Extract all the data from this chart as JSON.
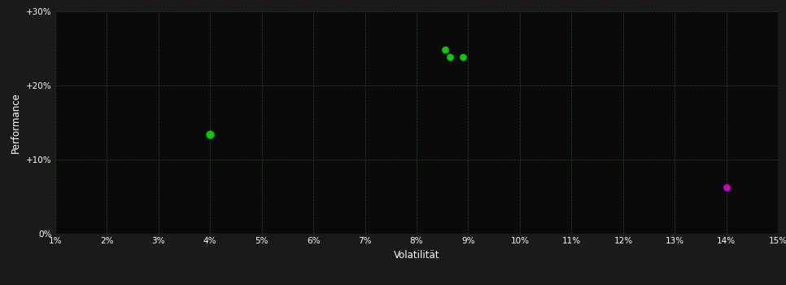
{
  "fig_bg_color": "#1a1a1a",
  "plot_bg_color": "#0a0a0a",
  "grid_color": "#2a4a2a",
  "text_color": "#ffffff",
  "xlabel": "Volatilität",
  "ylabel": "Performance",
  "xlim": [
    0.01,
    0.15
  ],
  "ylim": [
    0.0,
    0.3
  ],
  "xticks": [
    0.01,
    0.02,
    0.03,
    0.04,
    0.05,
    0.06,
    0.07,
    0.08,
    0.09,
    0.1,
    0.11,
    0.12,
    0.13,
    0.14,
    0.15
  ],
  "yticks": [
    0.0,
    0.1,
    0.2,
    0.3
  ],
  "ytick_labels": [
    "0%",
    "+10%",
    "+20%",
    "+30%"
  ],
  "xtick_labels": [
    "1%",
    "2%",
    "3%",
    "4%",
    "5%",
    "6%",
    "7%",
    "8%",
    "9%",
    "10%",
    "11%",
    "12%",
    "13%",
    "14%",
    "15%"
  ],
  "green_points": [
    [
      0.0855,
      0.248
    ],
    [
      0.0865,
      0.238
    ],
    [
      0.089,
      0.239
    ]
  ],
  "green_single": [
    0.04,
    0.134
  ],
  "magenta_point": [
    0.14,
    0.063
  ],
  "green_color": "#00cc00",
  "magenta_color": "#cc00cc",
  "dot_size": 40,
  "dot_size_single": 55,
  "font_size_ticks": 7.5,
  "font_size_label": 8.5
}
